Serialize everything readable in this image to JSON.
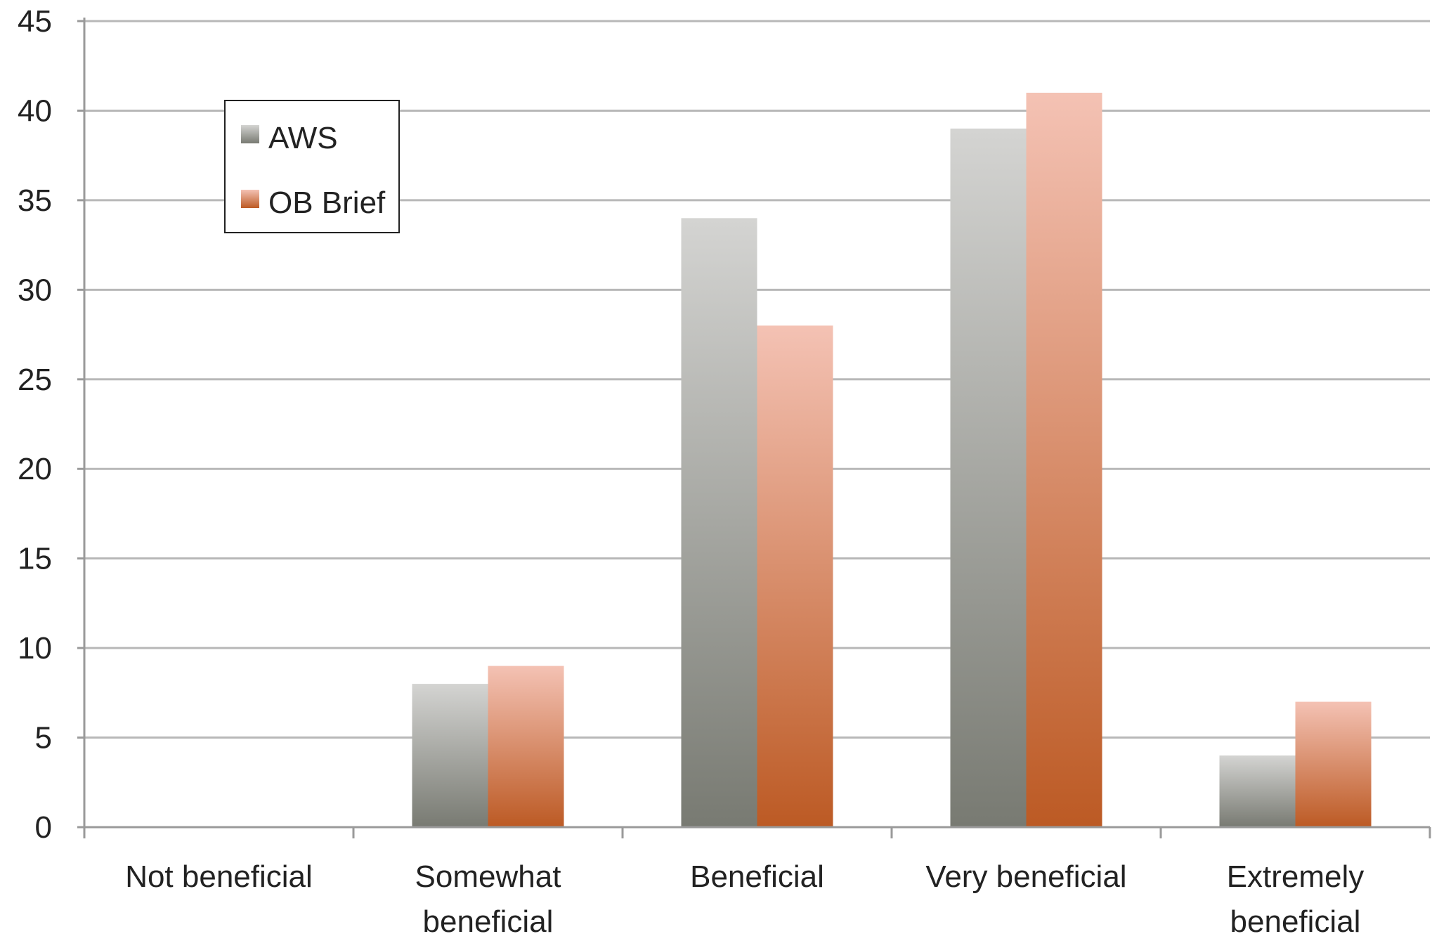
{
  "chart_data": {
    "type": "bar",
    "categories": [
      [
        "Not beneficial"
      ],
      [
        "Somewhat",
        "beneficial"
      ],
      [
        "Beneficial"
      ],
      [
        "Very beneficial"
      ],
      [
        "Extremely",
        "beneficial"
      ]
    ],
    "series": [
      {
        "name": "AWS",
        "values": [
          0,
          8,
          34,
          39,
          4
        ],
        "color_top": "#d4d4d2",
        "color_bottom": "#787a72"
      },
      {
        "name": "OB Brief",
        "values": [
          0,
          9,
          28,
          41,
          7
        ],
        "color_top": "#f4c2b4",
        "color_bottom": "#bc5a24"
      }
    ],
    "title": "",
    "xlabel": "",
    "ylabel": "",
    "ylim": [
      0,
      45
    ],
    "yticks": [
      0,
      5,
      10,
      15,
      20,
      25,
      30,
      35,
      40,
      45
    ],
    "grid": true,
    "legend_position": "top-left"
  },
  "colors": {
    "gridline": "#b8b8b8",
    "axis": "#9a9a9a",
    "text": "#222222"
  }
}
